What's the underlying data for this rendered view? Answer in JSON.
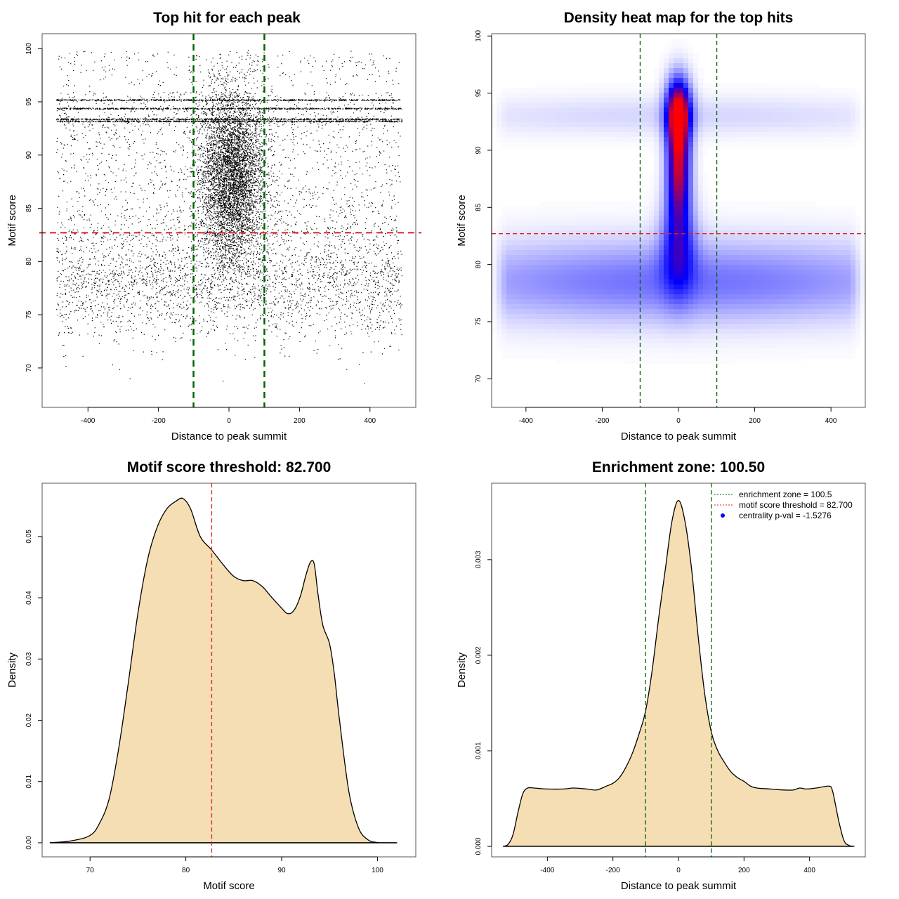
{
  "colors": {
    "points": "#000000",
    "enrichment_line": "#006400",
    "threshold_line": "#dd2222",
    "density_fill": "#f5deb3",
    "density_stroke": "#000000",
    "heat_low": "#ffffff",
    "heat_mid": "#0000ff",
    "heat_high": "#ff0000",
    "legend_point": "#0000ff"
  },
  "chart_data": [
    {
      "id": "scatter",
      "type": "scatter",
      "title": "Top hit for each peak",
      "xlabel": "Distance to peak summit",
      "ylabel": "Motif score",
      "xlim": [
        -530,
        530
      ],
      "ylim": [
        66.3,
        101.4
      ],
      "xticks": [
        -400,
        -200,
        0,
        200,
        400
      ],
      "yticks": [
        70,
        75,
        80,
        85,
        90,
        95,
        100
      ],
      "distribution": {
        "x_range": [
          -490,
          490
        ],
        "background_score_mode": 78,
        "central_score_mode": 88,
        "central_width_sd": 45,
        "score_range": [
          67.5,
          99.9
        ],
        "dense_rows": [
          93.2,
          93.4,
          95.2,
          94.4
        ]
      },
      "vlines": [
        -100.5,
        100.5
      ],
      "hline": 82.7,
      "grid": false
    },
    {
      "id": "heatmap",
      "type": "heatmap",
      "title": "Density heat map for the top hits",
      "xlabel": "Distance to peak summit",
      "ylabel": "Motif score",
      "xlim": [
        -490,
        490
      ],
      "ylim": [
        67.5,
        100.2
      ],
      "xticks": [
        -400,
        -200,
        0,
        200,
        400
      ],
      "yticks": [
        70,
        75,
        80,
        85,
        90,
        95,
        100
      ],
      "hotspots": [
        {
          "x": 0,
          "y": 93.3,
          "sx": 22,
          "sy": 2.0,
          "w": 1.0
        },
        {
          "x": 0,
          "y": 88.5,
          "sx": 20,
          "sy": 3.0,
          "w": 0.85
        },
        {
          "x": 0,
          "y": 82.0,
          "sx": 30,
          "sy": 3.0,
          "w": 0.45
        },
        {
          "x": 0,
          "y": 78.5,
          "sx": 500,
          "sy": 2.5,
          "w": 0.28
        },
        {
          "x": 0,
          "y": 93.0,
          "sx": 500,
          "sy": 1.2,
          "w": 0.08
        }
      ],
      "color_scale": [
        "white",
        "blue",
        "red"
      ],
      "vlines": [
        -100.5,
        100.5
      ],
      "hline": 82.7
    },
    {
      "id": "score_density",
      "type": "area",
      "title": "Motif score threshold: 82.700",
      "xlabel": "Motif score",
      "ylabel": "Density",
      "xlim": [
        65,
        104
      ],
      "ylim": [
        -0.0023,
        0.0587
      ],
      "xticks": [
        70,
        80,
        90,
        100
      ],
      "yticks": [
        "0.00",
        "0.01",
        "0.02",
        "0.03",
        "0.04",
        "0.05"
      ],
      "ytick_values": [
        0,
        0.01,
        0.02,
        0.03,
        0.04,
        0.05
      ],
      "x": [
        65.8,
        68,
        70,
        71,
        72,
        73,
        74,
        75,
        76,
        77,
        78,
        79,
        79.7,
        80.5,
        81.5,
        82.7,
        84,
        85,
        86,
        87,
        88,
        89,
        90,
        90.5,
        91,
        91.5,
        92,
        92.5,
        93,
        93.4,
        93.8,
        94.3,
        95,
        95.5,
        96,
        97,
        98,
        99,
        100,
        101,
        102
      ],
      "y": [
        0.0,
        0.0003,
        0.0012,
        0.0032,
        0.0072,
        0.0155,
        0.0262,
        0.0375,
        0.0462,
        0.0515,
        0.0545,
        0.0558,
        0.0562,
        0.0545,
        0.05,
        0.0478,
        0.0452,
        0.0435,
        0.0428,
        0.0428,
        0.0418,
        0.04,
        0.0383,
        0.0375,
        0.0375,
        0.0385,
        0.0405,
        0.0435,
        0.0458,
        0.0455,
        0.0405,
        0.0355,
        0.0325,
        0.0275,
        0.0205,
        0.0085,
        0.0025,
        0.0005,
        5e-05,
        0.0,
        0.0
      ],
      "vline": 82.7
    },
    {
      "id": "distance_density",
      "type": "area",
      "title": "Enrichment zone: 100.50",
      "xlabel": "Distance to peak summit",
      "ylabel": "Density",
      "xlim": [
        -570,
        570
      ],
      "ylim": [
        -0.00011,
        0.0038
      ],
      "xticks": [
        -400,
        -200,
        0,
        200,
        400
      ],
      "yticks": [
        "0.000",
        "0.001",
        "0.002",
        "0.003"
      ],
      "ytick_values": [
        0,
        0.001,
        0.002,
        0.003
      ],
      "x": [
        -535,
        -520,
        -505,
        -490,
        -475,
        -460,
        -440,
        -400,
        -350,
        -320,
        -280,
        -250,
        -220,
        -200,
        -180,
        -160,
        -140,
        -120,
        -100,
        -80,
        -60,
        -40,
        -20,
        0,
        20,
        40,
        60,
        80,
        100,
        120,
        140,
        160,
        180,
        200,
        220,
        240,
        280,
        320,
        350,
        370,
        390,
        420,
        460,
        470,
        480,
        490,
        505,
        520,
        535
      ],
      "y": [
        0.0,
        2e-05,
        0.00012,
        0.00035,
        0.00055,
        0.00061,
        0.00061,
        0.0006,
        0.0006,
        0.00061,
        0.0006,
        0.00059,
        0.00063,
        0.00066,
        0.00072,
        0.00083,
        0.00098,
        0.00118,
        0.00142,
        0.00185,
        0.0024,
        0.0029,
        0.0034,
        0.00362,
        0.0034,
        0.0029,
        0.0022,
        0.0016,
        0.0012,
        0.001,
        0.00088,
        0.00078,
        0.00072,
        0.00068,
        0.00063,
        0.00061,
        0.0006,
        0.00059,
        0.00059,
        0.00061,
        0.0006,
        0.00061,
        0.00063,
        0.00058,
        0.00042,
        0.00025,
        6e-05,
        1e-05,
        0.0
      ],
      "vlines": [
        -100.5,
        100.5
      ],
      "legend": {
        "position": "top-right",
        "entries": [
          {
            "label": "enrichment zone = 100.5",
            "style": "dotted-line",
            "color": "#006400"
          },
          {
            "label": "motif score threshold = 82.700",
            "style": "dotted-line",
            "color": "#dd2222"
          },
          {
            "label": "centrality p-val = -1.5276",
            "style": "point",
            "color": "#0000ff"
          }
        ]
      }
    }
  ]
}
